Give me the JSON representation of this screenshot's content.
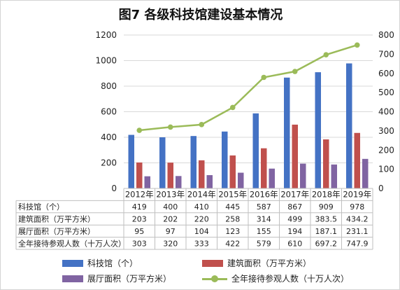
{
  "chart_data": {
    "type": "bar",
    "title": "图7 各级科技馆建设基本情况",
    "categories": [
      "2012年",
      "2013年",
      "2014年",
      "2015年",
      "2016年",
      "2017年",
      "2018年",
      "2019年"
    ],
    "ylim": [
      0,
      1200
    ],
    "y_ticks": [
      "0",
      "200",
      "400",
      "600",
      "800",
      "1000",
      "1200"
    ],
    "y2lim": [
      0,
      800
    ],
    "y2_ticks": [
      "0",
      "100",
      "200",
      "300",
      "400",
      "500",
      "600",
      "700",
      "800"
    ],
    "grid": true,
    "legend_position": "bottom",
    "series": [
      {
        "name": "科技馆（个）",
        "kind": "bar",
        "axis": "left",
        "color": "#4472c4",
        "values": [
          419,
          400,
          410,
          445,
          587,
          867,
          909,
          978
        ],
        "labels": [
          "419",
          "400",
          "410",
          "445",
          "587",
          "867",
          "909",
          "978"
        ]
      },
      {
        "name": "建筑面积（万平方米）",
        "kind": "bar",
        "axis": "left",
        "color": "#c0504d",
        "values": [
          203,
          202,
          220,
          258,
          314,
          499,
          383.5,
          434.2
        ],
        "labels": [
          "203",
          "202",
          "220",
          "258",
          "314",
          "499",
          "383.5",
          "434.2"
        ]
      },
      {
        "name": "展厅面积（万平方米）",
        "kind": "bar",
        "axis": "left",
        "color": "#8064a2",
        "values": [
          95,
          97,
          104,
          123,
          155,
          194,
          187.1,
          231.1
        ],
        "labels": [
          "95",
          "97",
          "104",
          "123",
          "155",
          "194",
          "187.1",
          "231.1"
        ]
      },
      {
        "name": "全年接待参观人数（十万人次）",
        "kind": "line",
        "axis": "right",
        "color": "#9bbb59",
        "values": [
          303,
          320,
          333,
          422,
          579,
          610,
          697.2,
          747.9
        ],
        "labels": [
          "303",
          "320",
          "333",
          "422",
          "579",
          "610",
          "697.2",
          "747.9"
        ]
      }
    ]
  }
}
